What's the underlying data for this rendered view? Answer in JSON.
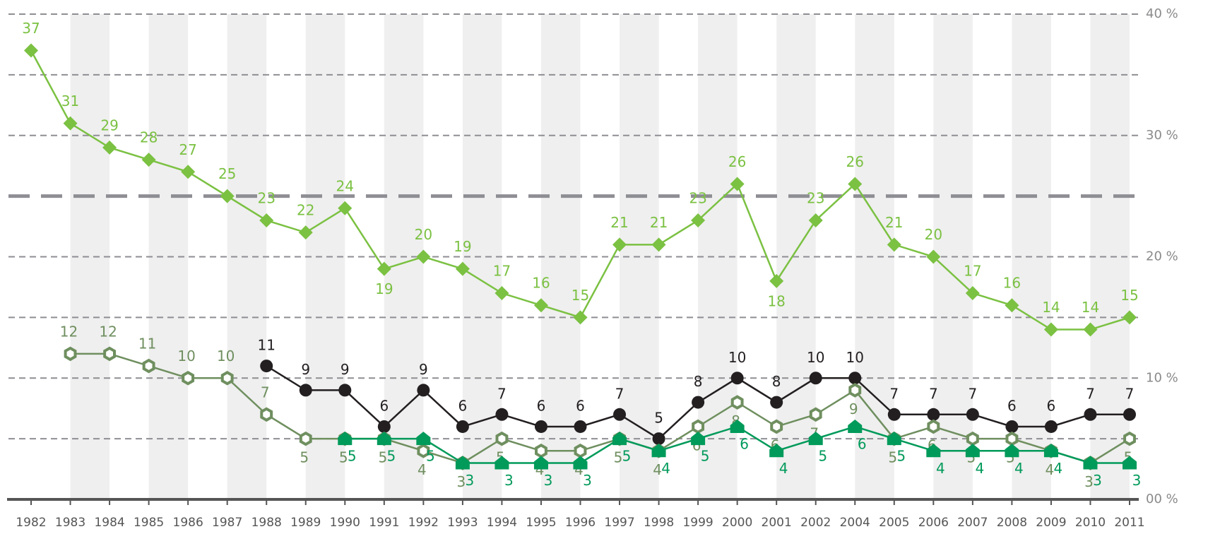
{
  "chart_data": {
    "type": "line",
    "categories": [
      "1982",
      "1983",
      "1984",
      "1985",
      "1986",
      "1987",
      "1988",
      "1989",
      "1990",
      "1991",
      "1992",
      "1993",
      "1994",
      "1995",
      "1996",
      "1997",
      "1998",
      "1999",
      "2000",
      "2001",
      "2002",
      "2004",
      "2005",
      "2006",
      "2007",
      "2008",
      "2009",
      "2010",
      "2011"
    ],
    "ylim": [
      0,
      40
    ],
    "yticks": [
      {
        "value": 0,
        "label": "00 %"
      },
      {
        "value": 10,
        "label": "10 %"
      },
      {
        "value": 20,
        "label": "20 %"
      },
      {
        "value": 30,
        "label": "30 %"
      },
      {
        "value": 40,
        "label": "40 %"
      }
    ],
    "minor_gridlines": [
      5,
      15,
      35
    ],
    "reference_line": 25,
    "grid": true,
    "series": [
      {
        "color": "#7bc142",
        "marker": "diamond",
        "values": [
          37,
          31,
          29,
          28,
          27,
          25,
          23,
          22,
          24,
          19,
          20,
          19,
          17,
          16,
          15,
          21,
          21,
          23,
          26,
          18,
          23,
          26,
          21,
          20,
          17,
          16,
          14,
          14,
          15
        ]
      },
      {
        "color": "#231f20",
        "marker": "circle",
        "values": [
          null,
          null,
          null,
          null,
          null,
          null,
          11,
          9,
          9,
          6,
          9,
          6,
          7,
          6,
          6,
          7,
          5,
          8,
          10,
          8,
          10,
          10,
          7,
          7,
          7,
          6,
          6,
          7,
          7
        ]
      },
      {
        "color": "#6f8f5f",
        "marker": "hexagon",
        "values": [
          null,
          12,
          12,
          11,
          10,
          10,
          7,
          5,
          5,
          5,
          4,
          3,
          5,
          4,
          4,
          5,
          4,
          6,
          8,
          6,
          7,
          9,
          5,
          6,
          5,
          5,
          4,
          3,
          5
        ]
      },
      {
        "color": "#009a5a",
        "marker": "pentagon",
        "values": [
          null,
          null,
          null,
          null,
          null,
          null,
          null,
          null,
          5,
          5,
          5,
          3,
          3,
          3,
          3,
          5,
          4,
          5,
          6,
          4,
          5,
          6,
          5,
          4,
          4,
          4,
          4,
          3,
          3
        ]
      }
    ]
  }
}
